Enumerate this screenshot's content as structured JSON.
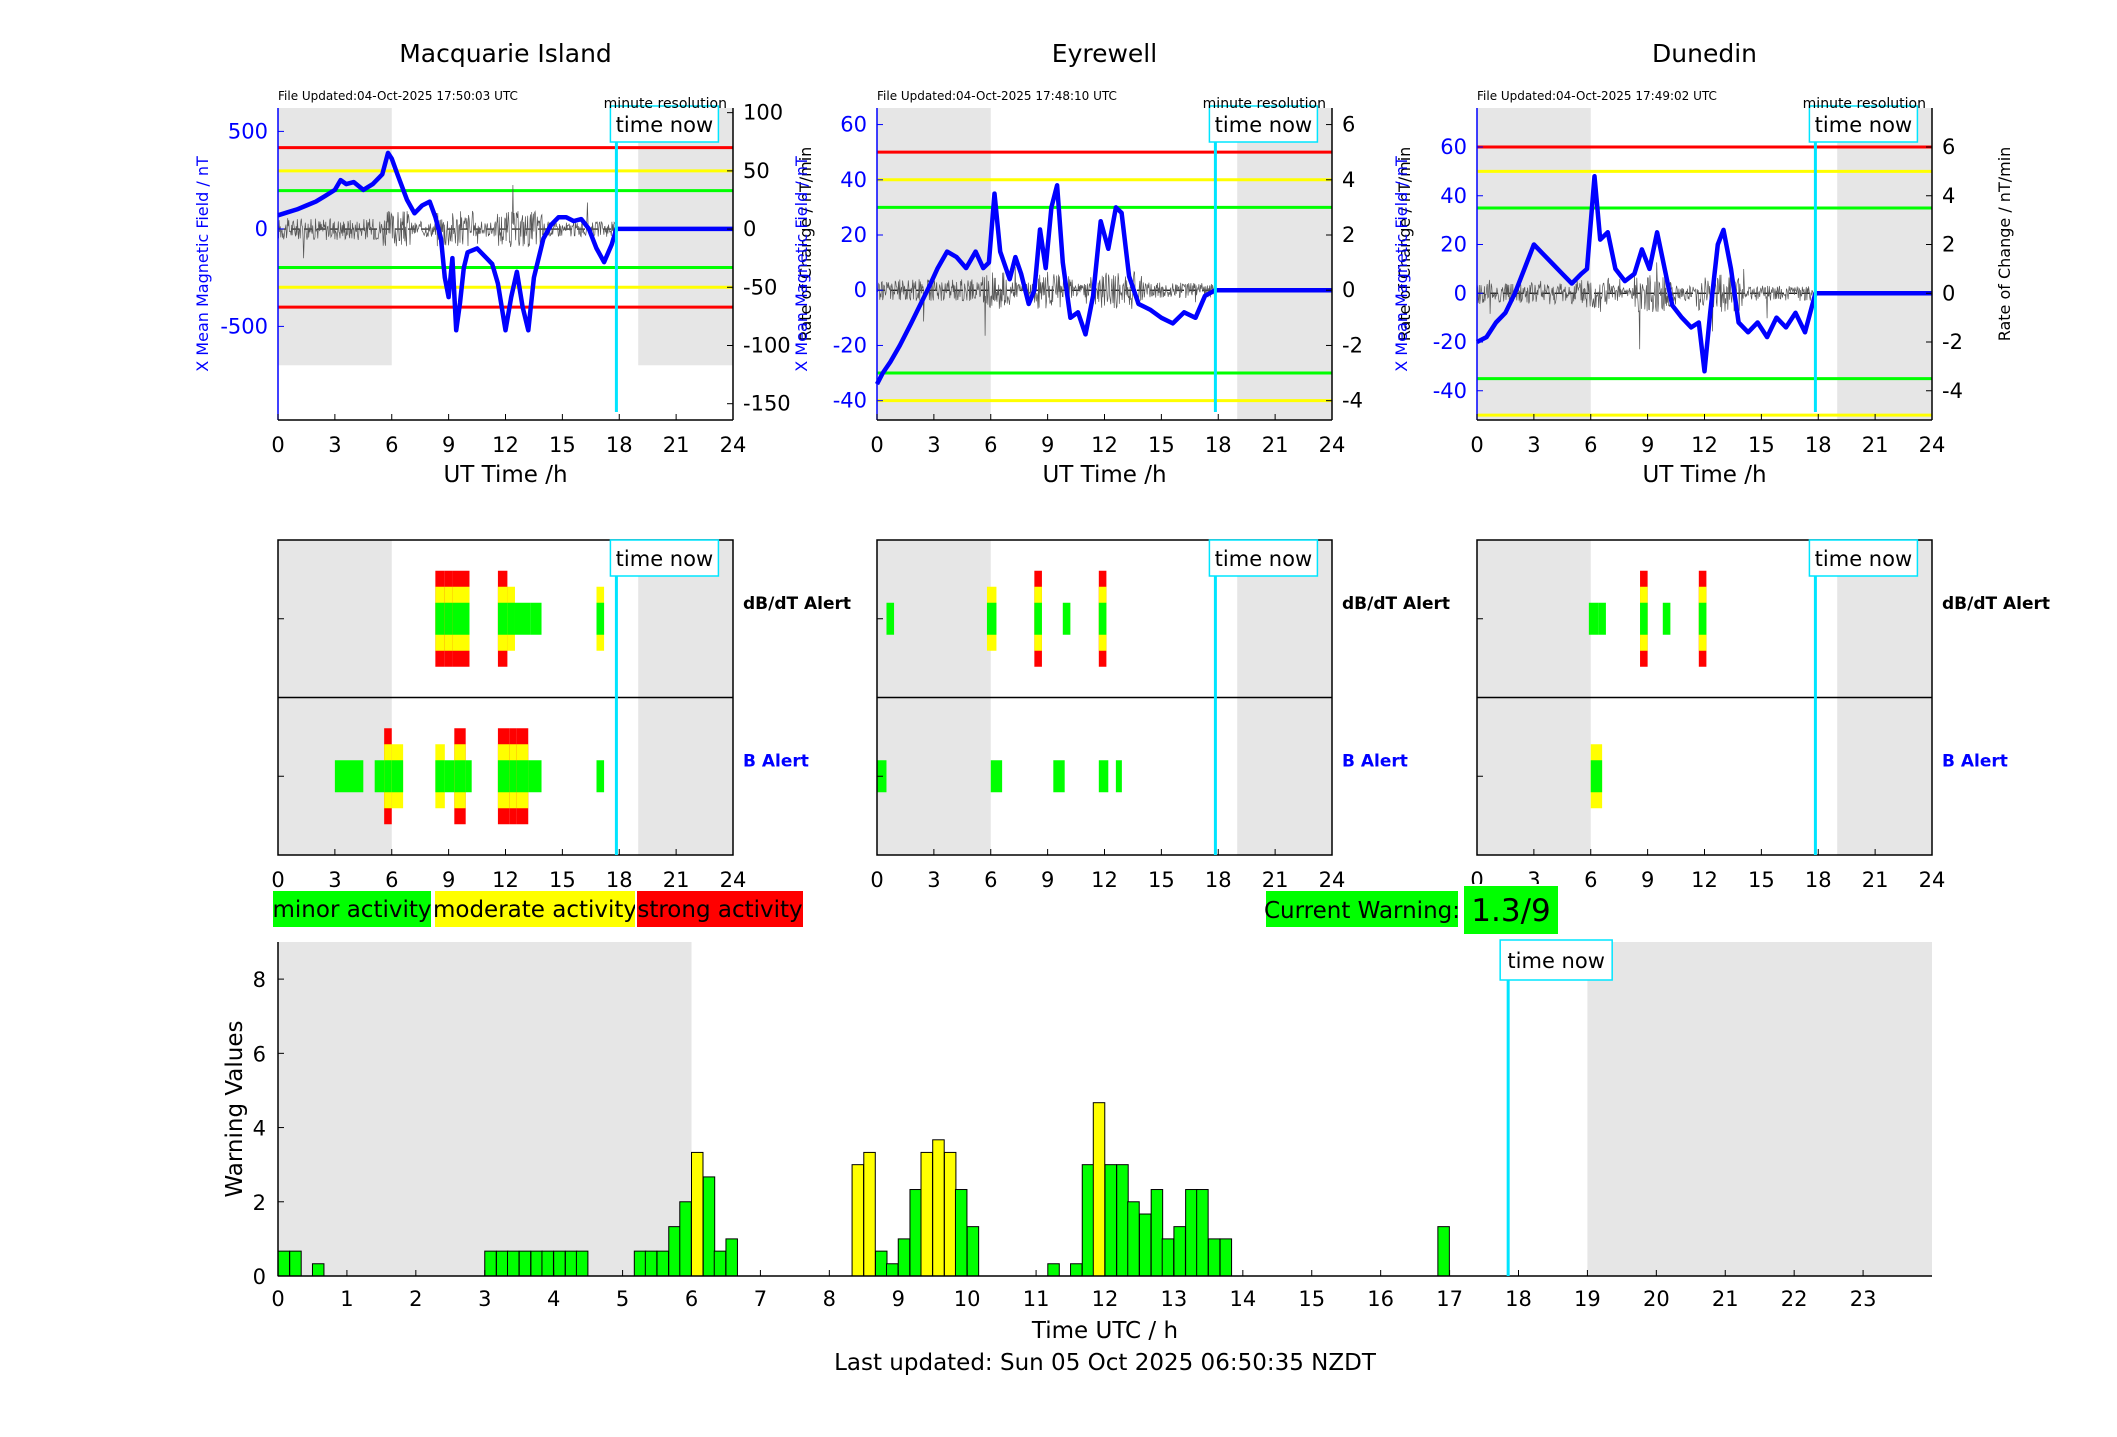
{
  "legend": {
    "minor": "minor activity",
    "moderate": "moderate activity",
    "strong": "strong activity"
  },
  "current_warning": {
    "label": "Current Warning:",
    "value": "1.3/9"
  },
  "footer": "Last updated: Sun 05 Oct 2025 06:50:35 NZDT",
  "time_now_label": "time now",
  "colors": {
    "minor": "#00ff00",
    "moderate": "#ffff00",
    "strong": "#ff0000",
    "now_line": "#00e5ff",
    "shade": "#e6e6e6",
    "mean": "#0000ff"
  },
  "chart_data": [
    {
      "type": "line",
      "station": "Macquarie Island",
      "file_updated": "File Updated:04-Oct-2025 17:50:03 UTC",
      "resolution": "minute resolution",
      "xlabel": "UT Time /h",
      "ylabel_left": "X Mean Magnetic Field / nT",
      "ylabel_right": "Rate of Change / nT/min",
      "xlim": [
        0,
        24
      ],
      "xticks": [
        0,
        3,
        6,
        9,
        12,
        15,
        18,
        21,
        24
      ],
      "ylim_left": [
        -980,
        620
      ],
      "yticks_left": [
        -500,
        0,
        500
      ],
      "ylim_right": [
        -164,
        104
      ],
      "yticks_right": [
        -150,
        -100,
        -50,
        0,
        50,
        100
      ],
      "thresholds_right": {
        "red": [
          70,
          -67
        ],
        "yellow": [
          50,
          -50
        ],
        "green": [
          33,
          -33
        ]
      },
      "shaded": [
        [
          0,
          6
        ],
        [
          19,
          24
        ]
      ],
      "shade_right_range": [
        -117,
        104
      ],
      "time_now": 17.85,
      "mean_series": [
        [
          0,
          70
        ],
        [
          0.5,
          85
        ],
        [
          1,
          100
        ],
        [
          1.5,
          120
        ],
        [
          2,
          140
        ],
        [
          2.5,
          170
        ],
        [
          3,
          200
        ],
        [
          3.3,
          250
        ],
        [
          3.6,
          230
        ],
        [
          4,
          240
        ],
        [
          4.5,
          200
        ],
        [
          5,
          230
        ],
        [
          5.5,
          280
        ],
        [
          5.8,
          390
        ],
        [
          6,
          360
        ],
        [
          6.3,
          280
        ],
        [
          6.8,
          150
        ],
        [
          7.2,
          80
        ],
        [
          7.6,
          120
        ],
        [
          8,
          140
        ],
        [
          8.3,
          60
        ],
        [
          8.6,
          -50
        ],
        [
          8.8,
          -250
        ],
        [
          9,
          -350
        ],
        [
          9.2,
          -150
        ],
        [
          9.4,
          -520
        ],
        [
          9.6,
          -380
        ],
        [
          9.8,
          -200
        ],
        [
          10,
          -120
        ],
        [
          10.5,
          -100
        ],
        [
          11,
          -150
        ],
        [
          11.3,
          -180
        ],
        [
          11.6,
          -280
        ],
        [
          12,
          -520
        ],
        [
          12.3,
          -350
        ],
        [
          12.6,
          -220
        ],
        [
          12.9,
          -400
        ],
        [
          13.2,
          -520
        ],
        [
          13.5,
          -250
        ],
        [
          14,
          -50
        ],
        [
          14.4,
          20
        ],
        [
          14.8,
          60
        ],
        [
          15.2,
          60
        ],
        [
          15.6,
          40
        ],
        [
          16,
          50
        ],
        [
          16.4,
          0
        ],
        [
          16.8,
          -100
        ],
        [
          17.2,
          -170
        ],
        [
          17.6,
          -80
        ],
        [
          17.85,
          0
        ],
        [
          24,
          0
        ]
      ]
    },
    {
      "type": "line",
      "station": "Eyrewell",
      "file_updated": "File Updated:04-Oct-2025 17:48:10 UTC",
      "resolution": "minute resolution",
      "xlabel": "UT Time /h",
      "ylabel_left": "X Mean Magnetic Field / nT",
      "ylabel_right": "Rate of Change / nT/min",
      "xlim": [
        0,
        24
      ],
      "xticks": [
        0,
        3,
        6,
        9,
        12,
        15,
        18,
        21,
        24
      ],
      "ylim_left": [
        -47,
        66
      ],
      "yticks_left": [
        -40,
        -20,
        0,
        20,
        40,
        60
      ],
      "ylim_right": [
        -4.7,
        6.6
      ],
      "yticks_right": [
        -4,
        -2,
        0,
        2,
        4,
        6
      ],
      "thresholds_right": {
        "red": [
          5
        ],
        "yellow": [
          4,
          -4
        ],
        "green": [
          3,
          -3
        ]
      },
      "shaded": [
        [
          0,
          6
        ],
        [
          19,
          24
        ]
      ],
      "shade_right_range": [
        -4.7,
        6.6
      ],
      "time_now": 17.85,
      "mean_series": [
        [
          0,
          -34
        ],
        [
          0.3,
          -30
        ],
        [
          0.7,
          -26
        ],
        [
          1.2,
          -20
        ],
        [
          1.8,
          -12
        ],
        [
          2.3,
          -5
        ],
        [
          2.8,
          2
        ],
        [
          3.2,
          8
        ],
        [
          3.7,
          14
        ],
        [
          4.2,
          12
        ],
        [
          4.7,
          8
        ],
        [
          5.2,
          14
        ],
        [
          5.6,
          8
        ],
        [
          5.9,
          10
        ],
        [
          6.2,
          35
        ],
        [
          6.5,
          14
        ],
        [
          7,
          4
        ],
        [
          7.3,
          12
        ],
        [
          7.6,
          6
        ],
        [
          8,
          -5
        ],
        [
          8.3,
          0
        ],
        [
          8.6,
          22
        ],
        [
          8.9,
          8
        ],
        [
          9.2,
          30
        ],
        [
          9.5,
          38
        ],
        [
          9.8,
          10
        ],
        [
          10.2,
          -10
        ],
        [
          10.6,
          -8
        ],
        [
          11,
          -16
        ],
        [
          11.4,
          -2
        ],
        [
          11.8,
          25
        ],
        [
          12.2,
          15
        ],
        [
          12.6,
          30
        ],
        [
          12.9,
          28
        ],
        [
          13.3,
          5
        ],
        [
          13.8,
          -5
        ],
        [
          14.4,
          -7
        ],
        [
          15,
          -10
        ],
        [
          15.6,
          -12
        ],
        [
          16.2,
          -8
        ],
        [
          16.8,
          -10
        ],
        [
          17.3,
          -2
        ],
        [
          17.85,
          0
        ],
        [
          24,
          0
        ]
      ]
    },
    {
      "type": "line",
      "station": "Dunedin",
      "file_updated": "File Updated:04-Oct-2025 17:49:02 UTC",
      "resolution": "minute resolution",
      "xlabel": "UT Time /h",
      "ylabel_left": "X Mean Magnetic Field / nT",
      "ylabel_right": "Rate of Change / nT/min",
      "xlim": [
        0,
        24
      ],
      "xticks": [
        0,
        3,
        6,
        9,
        12,
        15,
        18,
        21,
        24
      ],
      "ylim_left": [
        -52,
        76
      ],
      "yticks_left": [
        -40,
        -20,
        0,
        20,
        40,
        60
      ],
      "ylim_right": [
        -5.2,
        7.6
      ],
      "yticks_right": [
        -4,
        -2,
        0,
        2,
        4,
        6
      ],
      "thresholds_right": {
        "red": [
          6
        ],
        "yellow": [
          5,
          -5
        ],
        "green": [
          3.5,
          -3.5
        ]
      },
      "shaded": [
        [
          0,
          6
        ],
        [
          19,
          24
        ]
      ],
      "shade_right_range": [
        -5.2,
        7.6
      ],
      "time_now": 17.85,
      "mean_series": [
        [
          0,
          -20
        ],
        [
          0.5,
          -18
        ],
        [
          1,
          -12
        ],
        [
          1.5,
          -8
        ],
        [
          2,
          0
        ],
        [
          2.5,
          10
        ],
        [
          3,
          20
        ],
        [
          3.5,
          16
        ],
        [
          4,
          12
        ],
        [
          4.5,
          8
        ],
        [
          5,
          4
        ],
        [
          5.5,
          8
        ],
        [
          5.8,
          10
        ],
        [
          6.2,
          48
        ],
        [
          6.5,
          22
        ],
        [
          6.9,
          25
        ],
        [
          7.3,
          10
        ],
        [
          7.8,
          5
        ],
        [
          8.3,
          8
        ],
        [
          8.7,
          18
        ],
        [
          9.1,
          10
        ],
        [
          9.5,
          25
        ],
        [
          9.9,
          10
        ],
        [
          10.3,
          -5
        ],
        [
          10.8,
          -10
        ],
        [
          11.3,
          -14
        ],
        [
          11.7,
          -12
        ],
        [
          12,
          -32
        ],
        [
          12.3,
          -8
        ],
        [
          12.7,
          20
        ],
        [
          13,
          26
        ],
        [
          13.4,
          10
        ],
        [
          13.8,
          -12
        ],
        [
          14.3,
          -16
        ],
        [
          14.8,
          -12
        ],
        [
          15.3,
          -18
        ],
        [
          15.8,
          -10
        ],
        [
          16.3,
          -14
        ],
        [
          16.8,
          -8
        ],
        [
          17.3,
          -16
        ],
        [
          17.85,
          0
        ],
        [
          24,
          0
        ]
      ]
    },
    {
      "type": "alert-bands",
      "station": "Macquarie Island",
      "xlim": [
        0,
        24
      ],
      "xticks": [
        0,
        3,
        6,
        9,
        12,
        15,
        18,
        21,
        24
      ],
      "rows": [
        "dB/dT Alert",
        "B Alert"
      ],
      "time_now": 17.85,
      "shaded": [
        [
          0,
          6
        ],
        [
          19,
          24
        ]
      ],
      "dbdt": [
        [
          8.3,
          8.8,
          3
        ],
        [
          8.8,
          9.2,
          3
        ],
        [
          9.2,
          9.6,
          3
        ],
        [
          9.6,
          10.1,
          3
        ],
        [
          11.6,
          12.1,
          3
        ],
        [
          12.1,
          12.5,
          2
        ],
        [
          12.5,
          13.3,
          1
        ],
        [
          13.3,
          13.9,
          1
        ],
        [
          16.8,
          17.2,
          2
        ]
      ],
      "b": [
        [
          3.0,
          4.5,
          1
        ],
        [
          5.1,
          5.6,
          1
        ],
        [
          5.6,
          6.0,
          3
        ],
        [
          6.0,
          6.6,
          2
        ],
        [
          8.3,
          8.8,
          2
        ],
        [
          8.8,
          9.3,
          1
        ],
        [
          9.3,
          9.9,
          3
        ],
        [
          9.9,
          10.2,
          1
        ],
        [
          11.6,
          12.2,
          3
        ],
        [
          12.2,
          12.6,
          3
        ],
        [
          12.6,
          13.2,
          3
        ],
        [
          13.2,
          13.9,
          1
        ],
        [
          16.8,
          17.2,
          1
        ]
      ]
    },
    {
      "type": "alert-bands",
      "station": "Eyrewell",
      "xlim": [
        0,
        24
      ],
      "xticks": [
        0,
        3,
        6,
        9,
        12,
        15,
        18,
        21,
        24
      ],
      "rows": [
        "dB/dT Alert",
        "B Alert"
      ],
      "time_now": 17.85,
      "shaded": [
        [
          0,
          6
        ],
        [
          19,
          24
        ]
      ],
      "dbdt": [
        [
          0.5,
          0.9,
          1
        ],
        [
          5.8,
          6.3,
          2
        ],
        [
          8.3,
          8.7,
          3
        ],
        [
          9.8,
          10.2,
          1
        ],
        [
          11.7,
          12.1,
          3
        ]
      ],
      "b": [
        [
          0.0,
          0.5,
          1
        ],
        [
          6.0,
          6.6,
          1
        ],
        [
          9.3,
          9.9,
          1
        ],
        [
          11.7,
          12.2,
          1
        ],
        [
          12.6,
          12.9,
          1
        ]
      ]
    },
    {
      "type": "alert-bands",
      "station": "Dunedin",
      "xlim": [
        0,
        24
      ],
      "xticks": [
        0,
        3,
        6,
        9,
        12,
        15,
        18,
        21,
        24
      ],
      "rows": [
        "dB/dT Alert",
        "B Alert"
      ],
      "time_now": 17.85,
      "shaded": [
        [
          0,
          6
        ],
        [
          19,
          24
        ]
      ],
      "dbdt": [
        [
          5.9,
          6.4,
          1
        ],
        [
          6.4,
          6.8,
          1
        ],
        [
          8.6,
          9.0,
          3
        ],
        [
          9.8,
          10.2,
          1
        ],
        [
          11.7,
          12.1,
          3
        ]
      ],
      "b": [
        [
          6.0,
          6.6,
          2
        ]
      ]
    },
    {
      "type": "bar",
      "xlabel": "Time UTC / h",
      "ylabel": "Warning Values",
      "xlim": [
        0,
        24
      ],
      "xticks": [
        0,
        1,
        2,
        3,
        4,
        5,
        6,
        7,
        8,
        9,
        10,
        11,
        12,
        13,
        14,
        15,
        16,
        17,
        18,
        19,
        20,
        21,
        22,
        23
      ],
      "ylim": [
        0,
        9
      ],
      "yticks": [
        0,
        2,
        4,
        6,
        8
      ],
      "time_now": 17.85,
      "shaded": [
        [
          0,
          6
        ],
        [
          19,
          24
        ]
      ],
      "bar_width_h": 0.1667,
      "bars": [
        [
          0.0,
          0.67,
          "g"
        ],
        [
          0.17,
          0.67,
          "g"
        ],
        [
          0.5,
          0.33,
          "g"
        ],
        [
          3.0,
          0.67,
          "g"
        ],
        [
          3.17,
          0.67,
          "g"
        ],
        [
          3.33,
          0.67,
          "g"
        ],
        [
          3.5,
          0.67,
          "g"
        ],
        [
          3.67,
          0.67,
          "g"
        ],
        [
          3.83,
          0.67,
          "g"
        ],
        [
          4.0,
          0.67,
          "g"
        ],
        [
          4.17,
          0.67,
          "g"
        ],
        [
          4.33,
          0.67,
          "g"
        ],
        [
          5.17,
          0.67,
          "g"
        ],
        [
          5.33,
          0.67,
          "g"
        ],
        [
          5.5,
          0.67,
          "g"
        ],
        [
          5.67,
          1.33,
          "g"
        ],
        [
          5.83,
          2.0,
          "g"
        ],
        [
          6.0,
          3.33,
          "y"
        ],
        [
          6.17,
          2.67,
          "g"
        ],
        [
          6.33,
          0.67,
          "g"
        ],
        [
          6.5,
          1.0,
          "g"
        ],
        [
          8.33,
          3.0,
          "y"
        ],
        [
          8.5,
          3.33,
          "y"
        ],
        [
          8.67,
          0.67,
          "g"
        ],
        [
          8.83,
          0.33,
          "g"
        ],
        [
          9.0,
          1.0,
          "g"
        ],
        [
          9.17,
          2.33,
          "g"
        ],
        [
          9.33,
          3.33,
          "y"
        ],
        [
          9.5,
          3.67,
          "y"
        ],
        [
          9.67,
          3.33,
          "y"
        ],
        [
          9.83,
          2.33,
          "g"
        ],
        [
          10.0,
          1.33,
          "g"
        ],
        [
          11.17,
          0.33,
          "g"
        ],
        [
          11.5,
          0.33,
          "g"
        ],
        [
          11.67,
          3.0,
          "g"
        ],
        [
          11.83,
          4.67,
          "y"
        ],
        [
          12.0,
          3.0,
          "g"
        ],
        [
          12.17,
          3.0,
          "g"
        ],
        [
          12.33,
          2.0,
          "g"
        ],
        [
          12.5,
          1.67,
          "g"
        ],
        [
          12.67,
          2.33,
          "g"
        ],
        [
          12.83,
          1.0,
          "g"
        ],
        [
          13.0,
          1.33,
          "g"
        ],
        [
          13.17,
          2.33,
          "g"
        ],
        [
          13.33,
          2.33,
          "g"
        ],
        [
          13.5,
          1.0,
          "g"
        ],
        [
          13.67,
          1.0,
          "g"
        ],
        [
          16.83,
          1.33,
          "g"
        ]
      ]
    }
  ]
}
